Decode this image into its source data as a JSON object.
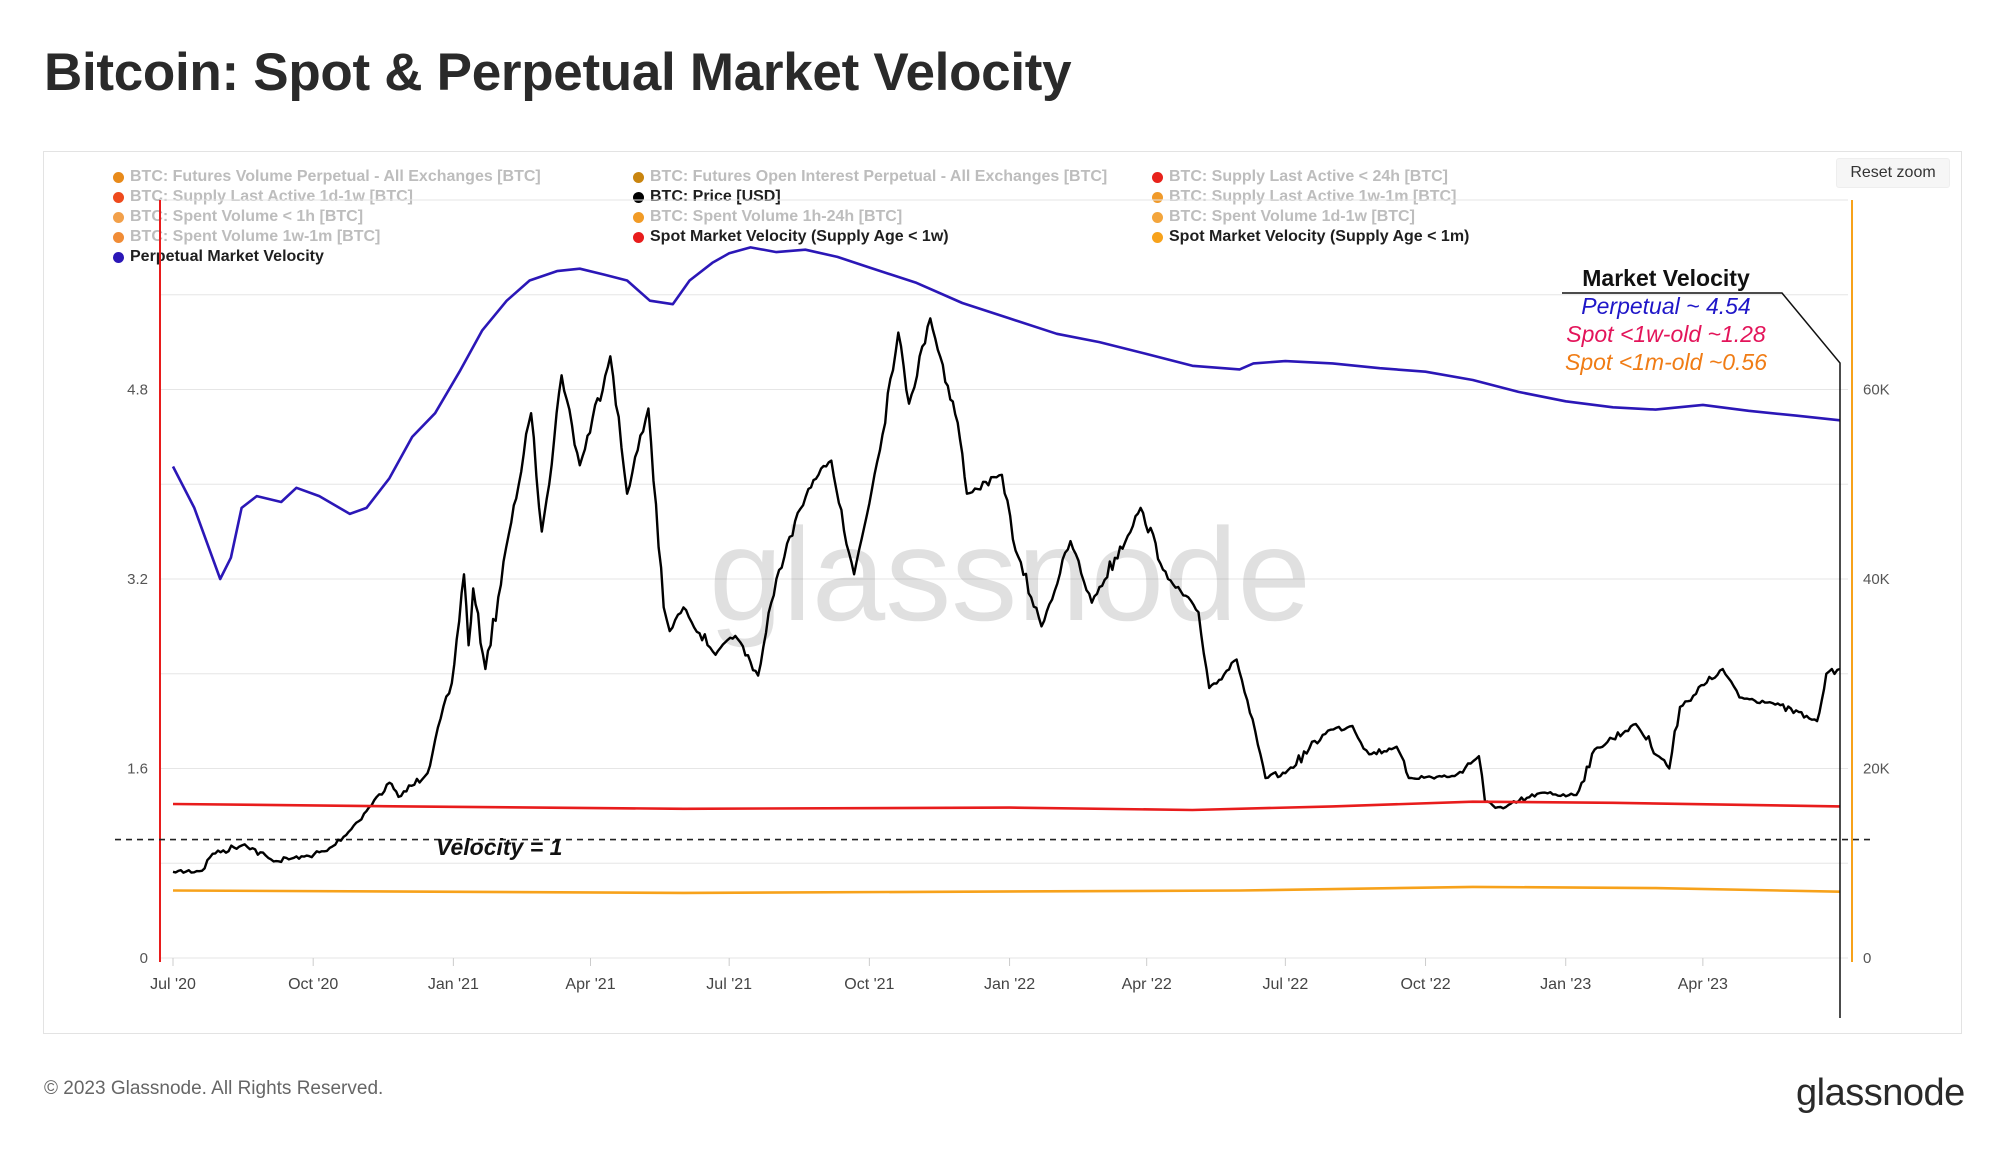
{
  "title": "Bitcoin: Spot & Perpetual Market Velocity",
  "reset_zoom": "Reset zoom",
  "copyright": "© 2023 Glassnode. All Rights Reserved.",
  "brand": "glassnode",
  "watermark": "glassnode",
  "legend": [
    {
      "label": "BTC: Futures Volume Perpetual - All Exchanges [BTC]",
      "color": "#e88a1a",
      "active": false
    },
    {
      "label": "BTC: Futures Open Interest Perpetual - All Exchanges [BTC]",
      "color": "#c9850f",
      "active": false
    },
    {
      "label": "BTC: Supply Last Active < 24h [BTC]",
      "color": "#e8221b",
      "active": false
    },
    {
      "label": "BTC: Supply Last Active 1d-1w [BTC]",
      "color": "#ee4a1d",
      "active": false
    },
    {
      "label": "BTC: Price [USD]",
      "color": "#000000",
      "active": true
    },
    {
      "label": "BTC: Supply Last Active 1w-1m [BTC]",
      "color": "#f09a2a",
      "active": false
    },
    {
      "label": "BTC: Spent Volume < 1h [BTC]",
      "color": "#f2a04a",
      "active": false
    },
    {
      "label": "BTC: Spent Volume 1h-24h [BTC]",
      "color": "#f19b26",
      "active": false
    },
    {
      "label": "BTC: Spent Volume 1d-1w [BTC]",
      "color": "#f3a53c",
      "active": false
    },
    {
      "label": "BTC: Spent Volume 1w-1m [BTC]",
      "color": "#f08c36",
      "active": false
    },
    {
      "label": "Spot Market Velocity (Supply Age < 1w)",
      "color": "#e81c1c",
      "active": true
    },
    {
      "label": "Spot Market Velocity (Supply Age < 1m)",
      "color": "#f7a21b",
      "active": true
    },
    {
      "label": "Perpetual Market Velocity",
      "color": "#2b17b7",
      "active": true
    }
  ],
  "annotations": {
    "velocity_eq_1": "Velocity = 1",
    "box_title": "Market Velocity",
    "perpetual": "Perpetual ~ 4.54",
    "spot_1w": "Spot <1w-old ~1.28",
    "spot_1m": "Spot <1m-old ~0.56"
  },
  "chart_data": {
    "type": "line",
    "x_tick_labels": [
      "Jul '20",
      "Oct '20",
      "Jan '21",
      "Apr '21",
      "Jul '21",
      "Oct '21",
      "Jan '22",
      "Apr '22",
      "Jul '22",
      "Oct '22",
      "Jan '23",
      "Apr '23"
    ],
    "x_tick_dates": [
      "2020-07-01",
      "2020-10-01",
      "2021-01-01",
      "2021-04-01",
      "2021-07-01",
      "2021-10-01",
      "2022-01-01",
      "2022-04-01",
      "2022-07-01",
      "2022-10-01",
      "2023-01-01",
      "2023-04-01"
    ],
    "y_left": {
      "tick_labels": [
        "0",
        "1.6",
        "3.2",
        "4.8"
      ],
      "ticks": [
        0,
        1.6,
        3.2,
        4.8
      ],
      "range": [
        0,
        6.4
      ]
    },
    "y_right": {
      "tick_labels": [
        "0",
        "20K",
        "40K",
        "60K"
      ],
      "ticks": [
        0,
        20000,
        40000,
        60000
      ],
      "range": [
        0,
        80000
      ]
    },
    "reference_line": {
      "y": 1,
      "label": "Velocity = 1"
    },
    "series": [
      {
        "name": "BTC: Price [USD]",
        "axis": "right",
        "color": "#000000",
        "points": [
          [
            "2020-07-01",
            9100
          ],
          [
            "2020-07-20",
            9200
          ],
          [
            "2020-07-27",
            11000
          ],
          [
            "2020-08-17",
            12000
          ],
          [
            "2020-09-05",
            10200
          ],
          [
            "2020-09-25",
            10700
          ],
          [
            "2020-10-10",
            11300
          ],
          [
            "2020-10-21",
            12800
          ],
          [
            "2020-11-05",
            15500
          ],
          [
            "2020-11-20",
            18500
          ],
          [
            "2020-11-26",
            17000
          ],
          [
            "2020-12-15",
            19500
          ],
          [
            "2020-12-20",
            23000
          ],
          [
            "2020-12-31",
            29000
          ],
          [
            "2021-01-08",
            40500
          ],
          [
            "2021-01-11",
            33000
          ],
          [
            "2021-01-14",
            39000
          ],
          [
            "2021-01-22",
            30500
          ],
          [
            "2021-02-08",
            46000
          ],
          [
            "2021-02-21",
            57500
          ],
          [
            "2021-02-28",
            45000
          ],
          [
            "2021-03-13",
            61500
          ],
          [
            "2021-03-25",
            52000
          ],
          [
            "2021-04-14",
            63500
          ],
          [
            "2021-04-25",
            49000
          ],
          [
            "2021-05-09",
            58000
          ],
          [
            "2021-05-19",
            37000
          ],
          [
            "2021-05-23",
            34500
          ],
          [
            "2021-06-01",
            37000
          ],
          [
            "2021-06-22",
            32000
          ],
          [
            "2021-07-05",
            34000
          ],
          [
            "2021-07-20",
            29800
          ],
          [
            "2021-08-01",
            40000
          ],
          [
            "2021-08-22",
            49500
          ],
          [
            "2021-09-06",
            52500
          ],
          [
            "2021-09-21",
            40500
          ],
          [
            "2021-10-01",
            48000
          ],
          [
            "2021-10-20",
            66000
          ],
          [
            "2021-10-27",
            58500
          ],
          [
            "2021-11-10",
            67500
          ],
          [
            "2021-11-28",
            56500
          ],
          [
            "2021-12-04",
            49000
          ],
          [
            "2021-12-27",
            51000
          ],
          [
            "2022-01-05",
            43000
          ],
          [
            "2022-01-22",
            35000
          ],
          [
            "2022-02-10",
            44000
          ],
          [
            "2022-02-24",
            37500
          ],
          [
            "2022-03-28",
            47500
          ],
          [
            "2022-04-15",
            40000
          ],
          [
            "2022-05-05",
            36500
          ],
          [
            "2022-05-12",
            28500
          ],
          [
            "2022-05-30",
            31500
          ],
          [
            "2022-06-13",
            22500
          ],
          [
            "2022-06-18",
            19000
          ],
          [
            "2022-07-01",
            19500
          ],
          [
            "2022-07-29",
            24000
          ],
          [
            "2022-08-14",
            24500
          ],
          [
            "2022-08-25",
            21500
          ],
          [
            "2022-09-12",
            22300
          ],
          [
            "2022-09-20",
            19000
          ],
          [
            "2022-10-20",
            19200
          ],
          [
            "2022-11-05",
            21300
          ],
          [
            "2022-11-09",
            16500
          ],
          [
            "2022-11-21",
            15800
          ],
          [
            "2022-12-15",
            17400
          ],
          [
            "2023-01-08",
            17200
          ],
          [
            "2023-01-20",
            22000
          ],
          [
            "2023-02-16",
            24700
          ],
          [
            "2023-03-10",
            20000
          ],
          [
            "2023-03-17",
            26500
          ],
          [
            "2023-04-14",
            30500
          ],
          [
            "2023-04-25",
            27500
          ],
          [
            "2023-05-15",
            27000
          ],
          [
            "2023-06-15",
            25000
          ],
          [
            "2023-06-21",
            30000
          ],
          [
            "2023-06-30",
            30500
          ]
        ]
      },
      {
        "name": "Perpetual Market Velocity",
        "axis": "left",
        "color": "#2b17b7",
        "points": [
          [
            "2020-07-01",
            4.15
          ],
          [
            "2020-07-15",
            3.8
          ],
          [
            "2020-08-01",
            3.2
          ],
          [
            "2020-08-08",
            3.38
          ],
          [
            "2020-08-15",
            3.8
          ],
          [
            "2020-08-25",
            3.9
          ],
          [
            "2020-09-10",
            3.85
          ],
          [
            "2020-09-20",
            3.97
          ],
          [
            "2020-10-05",
            3.9
          ],
          [
            "2020-10-25",
            3.75
          ],
          [
            "2020-11-05",
            3.8
          ],
          [
            "2020-11-20",
            4.05
          ],
          [
            "2020-12-05",
            4.4
          ],
          [
            "2020-12-20",
            4.6
          ],
          [
            "2021-01-05",
            4.95
          ],
          [
            "2021-01-20",
            5.3
          ],
          [
            "2021-02-05",
            5.55
          ],
          [
            "2021-02-20",
            5.72
          ],
          [
            "2021-03-10",
            5.8
          ],
          [
            "2021-03-25",
            5.82
          ],
          [
            "2021-04-10",
            5.77
          ],
          [
            "2021-04-25",
            5.72
          ],
          [
            "2021-05-10",
            5.55
          ],
          [
            "2021-05-25",
            5.52
          ],
          [
            "2021-06-05",
            5.72
          ],
          [
            "2021-06-20",
            5.87
          ],
          [
            "2021-07-01",
            5.95
          ],
          [
            "2021-07-15",
            6.0
          ],
          [
            "2021-08-01",
            5.96
          ],
          [
            "2021-08-20",
            5.98
          ],
          [
            "2021-09-10",
            5.92
          ],
          [
            "2021-10-01",
            5.83
          ],
          [
            "2021-11-01",
            5.7
          ],
          [
            "2021-12-01",
            5.53
          ],
          [
            "2022-01-01",
            5.4
          ],
          [
            "2022-02-01",
            5.27
          ],
          [
            "2022-03-01",
            5.2
          ],
          [
            "2022-04-01",
            5.1
          ],
          [
            "2022-05-01",
            5.0
          ],
          [
            "2022-06-01",
            4.97
          ],
          [
            "2022-06-10",
            5.02
          ],
          [
            "2022-07-01",
            5.04
          ],
          [
            "2022-08-01",
            5.02
          ],
          [
            "2022-09-01",
            4.98
          ],
          [
            "2022-10-01",
            4.95
          ],
          [
            "2022-11-01",
            4.88
          ],
          [
            "2022-12-01",
            4.78
          ],
          [
            "2023-01-01",
            4.7
          ],
          [
            "2023-02-01",
            4.65
          ],
          [
            "2023-03-01",
            4.63
          ],
          [
            "2023-04-01",
            4.67
          ],
          [
            "2023-05-01",
            4.62
          ],
          [
            "2023-06-01",
            4.58
          ],
          [
            "2023-06-30",
            4.54
          ]
        ]
      },
      {
        "name": "Spot Market Velocity (Supply Age < 1w)",
        "axis": "left",
        "color": "#e81c1c",
        "points": [
          [
            "2020-07-01",
            1.3
          ],
          [
            "2020-12-01",
            1.28
          ],
          [
            "2021-06-01",
            1.26
          ],
          [
            "2022-01-01",
            1.27
          ],
          [
            "2022-05-01",
            1.25
          ],
          [
            "2022-08-01",
            1.28
          ],
          [
            "2022-11-01",
            1.32
          ],
          [
            "2023-02-01",
            1.31
          ],
          [
            "2023-06-30",
            1.28
          ]
        ]
      },
      {
        "name": "Spot Market Velocity (Supply Age < 1m)",
        "axis": "left",
        "color": "#f7a21b",
        "points": [
          [
            "2020-07-01",
            0.57
          ],
          [
            "2021-06-01",
            0.55
          ],
          [
            "2022-06-01",
            0.57
          ],
          [
            "2022-11-01",
            0.6
          ],
          [
            "2023-03-01",
            0.59
          ],
          [
            "2023-06-30",
            0.56
          ]
        ]
      }
    ]
  }
}
